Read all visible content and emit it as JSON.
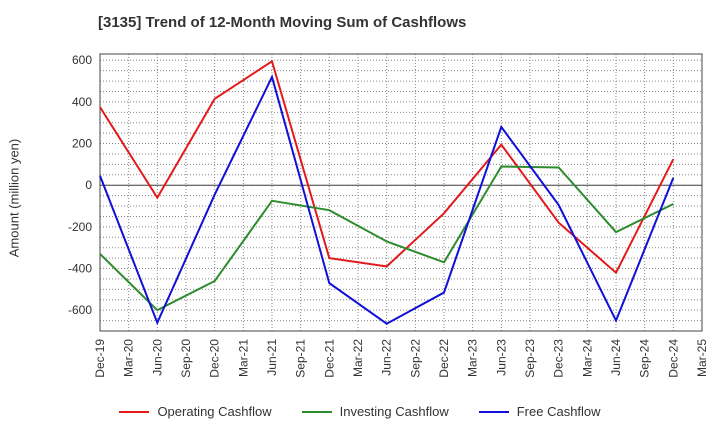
{
  "chart_data": {
    "type": "line",
    "title": "[3135]  Trend of 12-Month Moving Sum of Cashflows",
    "ylabel": "Amount (million yen)",
    "xlabel": "",
    "categories": [
      "Dec-19",
      "Mar-20",
      "Jun-20",
      "Sep-20",
      "Dec-20",
      "Mar-21",
      "Jun-21",
      "Sep-21",
      "Dec-21",
      "Mar-22",
      "Jun-22",
      "Sep-22",
      "Dec-22",
      "Mar-23",
      "Jun-23",
      "Sep-23",
      "Dec-23",
      "Mar-24",
      "Jun-24",
      "Sep-24",
      "Dec-24",
      "Mar-25"
    ],
    "ylim": [
      -700,
      630
    ],
    "yticks": [
      600,
      400,
      200,
      0,
      -200,
      -400,
      -600
    ],
    "grid": true,
    "legend_position": "bottom",
    "series": [
      {
        "name": "Operating Cashflow",
        "color": "#e31a1c",
        "values": [
          375,
          null,
          -60,
          null,
          415,
          null,
          595,
          null,
          -350,
          null,
          -390,
          null,
          -135,
          null,
          195,
          null,
          -180,
          null,
          -420,
          null,
          125,
          null
        ]
      },
      {
        "name": "Investing Cashflow",
        "color": "#2e8b2e",
        "values": [
          -330,
          null,
          -600,
          null,
          -460,
          null,
          -75,
          null,
          -120,
          null,
          -270,
          null,
          -370,
          null,
          90,
          null,
          85,
          null,
          -225,
          null,
          -90,
          null
        ]
      },
      {
        "name": "Free Cashflow",
        "color": "#1010d8",
        "values": [
          45,
          null,
          -660,
          null,
          -45,
          null,
          520,
          null,
          -470,
          null,
          -665,
          null,
          -515,
          null,
          280,
          null,
          -95,
          null,
          -650,
          null,
          35,
          null
        ]
      }
    ]
  }
}
